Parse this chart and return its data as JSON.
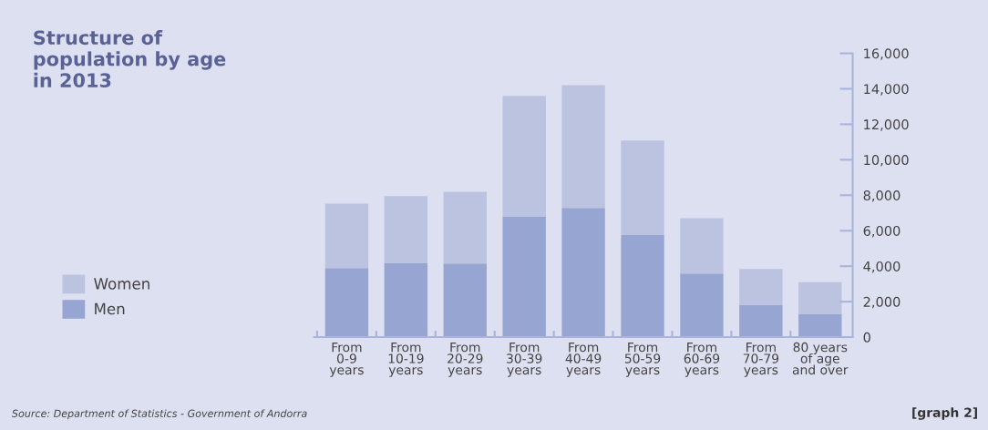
{
  "chart_data": {
    "type": "bar",
    "title": "Structure of\npopulation by age\nin 2013",
    "categories": [
      "From\n0-9\nyears",
      "From\n10-19\nyears",
      "From\n20-29\nyears",
      "From\n30-39\nyears",
      "From\n40-49\nyears",
      "From\n50-59\nyears",
      "From\n60-69\nyears",
      "From\n70-79\nyears",
      "80 years\nof age\nand over"
    ],
    "series": [
      {
        "name": "Men",
        "color": "#96a5d1",
        "values": [
          3890,
          4190,
          4150,
          6810,
          7280,
          5780,
          3580,
          1830,
          1310
        ]
      },
      {
        "name": "Women",
        "color": "#bcc3e0",
        "values": [
          3640,
          3760,
          4050,
          6790,
          6930,
          5300,
          3130,
          2010,
          1790
        ]
      }
    ],
    "stacked": true,
    "ylim": [
      0,
      16000
    ],
    "yticks": [
      {
        "value": 0,
        "label": "0"
      },
      {
        "value": 2000,
        "label": "2,000"
      },
      {
        "value": 4000,
        "label": "4,000"
      },
      {
        "value": 6000,
        "label": "6,000"
      },
      {
        "value": 8000,
        "label": "8,000"
      },
      {
        "value": 10000,
        "label": "10,000"
      },
      {
        "value": 12000,
        "label": "12,000"
      },
      {
        "value": 14000,
        "label": "14,000"
      },
      {
        "value": 16000,
        "label": "16,000"
      }
    ],
    "grid": false,
    "legend": "left",
    "annotations": [
      "Source: Department of Statistics - Government of Andorra",
      "[graph 2]"
    ]
  }
}
